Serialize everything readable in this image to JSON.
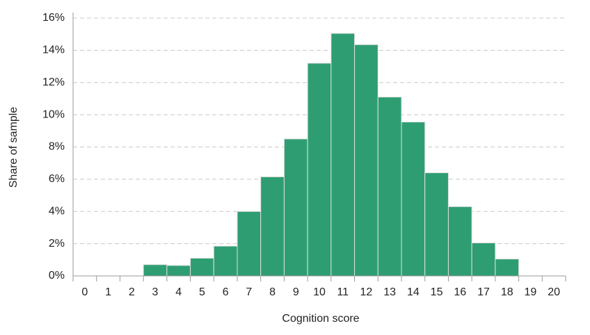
{
  "chart_data": {
    "type": "bar",
    "x_label": "Cognition score",
    "y_label": "Share of sample",
    "categories": [
      "0",
      "1",
      "2",
      "3",
      "4",
      "5",
      "6",
      "7",
      "8",
      "9",
      "10",
      "11",
      "12",
      "13",
      "14",
      "15",
      "16",
      "17",
      "18",
      "19",
      "20"
    ],
    "values": [
      0,
      0,
      0,
      0.7,
      0.65,
      1.1,
      1.85,
      4.0,
      6.15,
      8.5,
      13.2,
      15.05,
      14.35,
      11.1,
      9.55,
      6.4,
      4.3,
      2.05,
      1.05,
      0,
      0
    ],
    "color": "#2e9e72",
    "ylim": [
      0,
      16
    ],
    "yticks": [
      {
        "value": 0,
        "label": "0%"
      },
      {
        "value": 2,
        "label": "2%"
      },
      {
        "value": 4,
        "label": "4%"
      },
      {
        "value": 6,
        "label": "6%"
      },
      {
        "value": 8,
        "label": "8%"
      },
      {
        "value": 10,
        "label": "10%"
      },
      {
        "value": 12,
        "label": "12%"
      },
      {
        "value": 14,
        "label": "14%"
      },
      {
        "value": 16,
        "label": "16%"
      }
    ],
    "grid": true
  }
}
